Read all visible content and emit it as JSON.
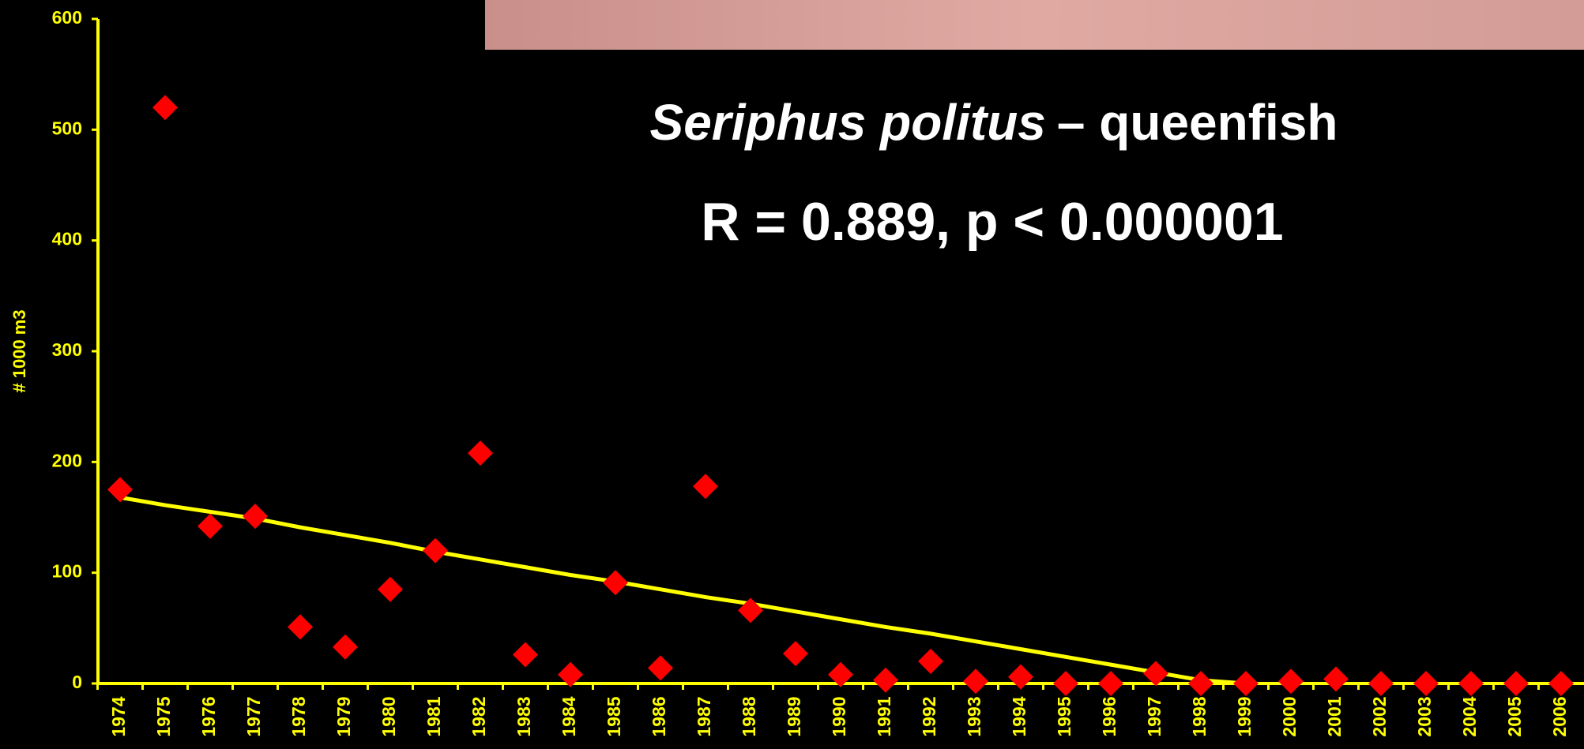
{
  "chart_data": {
    "type": "scatter",
    "title_italic": "Seriphus politus",
    "title": "– queenfish",
    "subtitle": "R = 0.889, p < 0.000001",
    "y_label": "# 1000 m3",
    "categories": [
      "1974",
      "1975",
      "1976",
      "1977",
      "1978",
      "1979",
      "1980",
      "1981",
      "1982",
      "1983",
      "1984",
      "1985",
      "1986",
      "1987",
      "1988",
      "1989",
      "1990",
      "1991",
      "1992",
      "1993",
      "1994",
      "1995",
      "1996",
      "1997",
      "1998",
      "1999",
      "2000",
      "2001",
      "2002",
      "2003",
      "2004",
      "2005",
      "2006"
    ],
    "series": [
      {
        "color": "#ff0000",
        "marker": "diamond",
        "values": [
          175,
          520,
          142,
          151,
          51,
          33,
          85,
          120,
          208,
          26,
          8,
          91,
          14,
          178,
          66,
          27,
          8,
          3,
          20,
          2,
          6,
          0,
          0,
          9,
          0,
          0,
          2,
          4,
          0,
          0,
          0,
          0,
          0
        ]
      },
      {
        "color": "#ffff00",
        "marker": "line",
        "values": [
          168,
          161,
          155,
          149,
          141,
          134,
          127,
          119,
          112,
          105,
          98,
          92,
          85,
          78,
          72,
          65,
          58,
          51,
          45,
          38,
          31,
          24,
          17,
          10,
          3,
          0,
          null,
          null,
          null,
          null,
          null,
          null,
          null
        ]
      }
    ],
    "ylim": [
      0,
      600
    ],
    "yticks": [
      0,
      100,
      200,
      300,
      400,
      500,
      600
    ],
    "axis_color": "#ffff00"
  }
}
